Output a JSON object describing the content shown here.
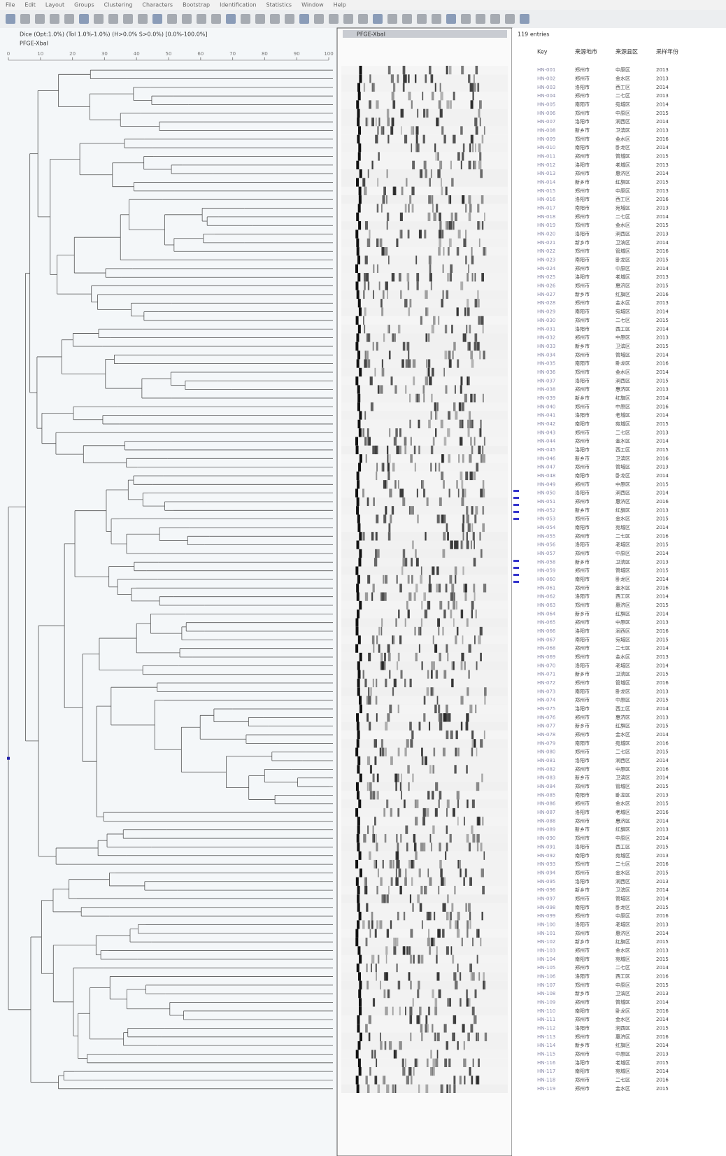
{
  "menu": [
    "File",
    "Edit",
    "Layout",
    "Groups",
    "Clustering",
    "Characters",
    "Bootstrap",
    "Identification",
    "Statistics",
    "Window",
    "Help"
  ],
  "dendrogram_header": [
    "Dice (Opt:1.0%) (Tol 1.0%-1.0%) (H>0.0% S>0.0%) [0.0%-100.0%]",
    "PFGE-XbaI"
  ],
  "gel_title": "PFGE-XbaI",
  "entries": "119 entries",
  "scale": {
    "lim": [
      0,
      100
    ],
    "ticks": [
      0,
      10,
      20,
      30,
      40,
      50,
      60,
      70,
      80,
      90,
      100
    ]
  },
  "table": {
    "header": [
      "Key",
      "来源地市",
      "来源县区",
      "采样年份"
    ],
    "rows": [
      [
        "HN-001",
        "郑州市",
        "中原区",
        "2013"
      ],
      [
        "HN-002",
        "郑州市",
        "金水区",
        "2013"
      ],
      [
        "HN-003",
        "洛阳市",
        "西工区",
        "2014"
      ],
      [
        "HN-004",
        "郑州市",
        "二七区",
        "2013"
      ],
      [
        "HN-005",
        "南阳市",
        "宛城区",
        "2014"
      ],
      [
        "HN-006",
        "郑州市",
        "中原区",
        "2015"
      ],
      [
        "HN-007",
        "洛阳市",
        "涧西区",
        "2014"
      ],
      [
        "HN-008",
        "新乡市",
        "卫滨区",
        "2013"
      ],
      [
        "HN-009",
        "郑州市",
        "金水区",
        "2016"
      ],
      [
        "HN-010",
        "南阳市",
        "卧龙区",
        "2014"
      ],
      [
        "HN-011",
        "郑州市",
        "管城区",
        "2015"
      ],
      [
        "HN-012",
        "洛阳市",
        "老城区",
        "2013"
      ],
      [
        "HN-013",
        "郑州市",
        "惠济区",
        "2014"
      ],
      [
        "HN-014",
        "新乡市",
        "红旗区",
        "2015"
      ],
      [
        "HN-015",
        "郑州市",
        "中原区",
        "2013"
      ],
      [
        "HN-016",
        "洛阳市",
        "西工区",
        "2016"
      ],
      [
        "HN-017",
        "南阳市",
        "宛城区",
        "2013"
      ],
      [
        "HN-018",
        "郑州市",
        "二七区",
        "2014"
      ],
      [
        "HN-019",
        "郑州市",
        "金水区",
        "2015"
      ],
      [
        "HN-020",
        "洛阳市",
        "涧西区",
        "2013"
      ],
      [
        "HN-021",
        "新乡市",
        "卫滨区",
        "2014"
      ],
      [
        "HN-022",
        "郑州市",
        "管城区",
        "2016"
      ],
      [
        "HN-023",
        "南阳市",
        "卧龙区",
        "2015"
      ],
      [
        "HN-024",
        "郑州市",
        "中原区",
        "2014"
      ],
      [
        "HN-025",
        "洛阳市",
        "老城区",
        "2013"
      ],
      [
        "HN-026",
        "郑州市",
        "惠济区",
        "2015"
      ],
      [
        "HN-027",
        "新乡市",
        "红旗区",
        "2016"
      ],
      [
        "HN-028",
        "郑州市",
        "金水区",
        "2013"
      ],
      [
        "HN-029",
        "南阳市",
        "宛城区",
        "2014"
      ],
      [
        "HN-030",
        "郑州市",
        "二七区",
        "2015"
      ],
      [
        "HN-031",
        "洛阳市",
        "西工区",
        "2014"
      ],
      [
        "HN-032",
        "郑州市",
        "中原区",
        "2013"
      ],
      [
        "HN-033",
        "新乡市",
        "卫滨区",
        "2015"
      ],
      [
        "HN-034",
        "郑州市",
        "管城区",
        "2014"
      ],
      [
        "HN-035",
        "南阳市",
        "卧龙区",
        "2016"
      ],
      [
        "HN-036",
        "郑州市",
        "金水区",
        "2014"
      ],
      [
        "HN-037",
        "洛阳市",
        "涧西区",
        "2015"
      ],
      [
        "HN-038",
        "郑州市",
        "惠济区",
        "2013"
      ],
      [
        "HN-039",
        "新乡市",
        "红旗区",
        "2014"
      ],
      [
        "HN-040",
        "郑州市",
        "中原区",
        "2016"
      ],
      [
        "HN-041",
        "洛阳市",
        "老城区",
        "2014"
      ],
      [
        "HN-042",
        "南阳市",
        "宛城区",
        "2015"
      ],
      [
        "HN-043",
        "郑州市",
        "二七区",
        "2013"
      ],
      [
        "HN-044",
        "郑州市",
        "金水区",
        "2014"
      ],
      [
        "HN-045",
        "洛阳市",
        "西工区",
        "2015"
      ],
      [
        "HN-046",
        "新乡市",
        "卫滨区",
        "2016"
      ],
      [
        "HN-047",
        "郑州市",
        "管城区",
        "2013"
      ],
      [
        "HN-048",
        "南阳市",
        "卧龙区",
        "2014"
      ],
      [
        "HN-049",
        "郑州市",
        "中原区",
        "2015"
      ],
      [
        "HN-050",
        "洛阳市",
        "涧西区",
        "2014"
      ],
      [
        "HN-051",
        "郑州市",
        "惠济区",
        "2016"
      ],
      [
        "HN-052",
        "新乡市",
        "红旗区",
        "2013"
      ],
      [
        "HN-053",
        "郑州市",
        "金水区",
        "2015"
      ],
      [
        "HN-054",
        "南阳市",
        "宛城区",
        "2014"
      ],
      [
        "HN-055",
        "郑州市",
        "二七区",
        "2016"
      ],
      [
        "HN-056",
        "洛阳市",
        "老城区",
        "2015"
      ],
      [
        "HN-057",
        "郑州市",
        "中原区",
        "2014"
      ],
      [
        "HN-058",
        "新乡市",
        "卫滨区",
        "2013"
      ],
      [
        "HN-059",
        "郑州市",
        "管城区",
        "2015"
      ],
      [
        "HN-060",
        "南阳市",
        "卧龙区",
        "2014"
      ],
      [
        "HN-061",
        "郑州市",
        "金水区",
        "2016"
      ],
      [
        "HN-062",
        "洛阳市",
        "西工区",
        "2014"
      ],
      [
        "HN-063",
        "郑州市",
        "惠济区",
        "2015"
      ],
      [
        "HN-064",
        "新乡市",
        "红旗区",
        "2014"
      ],
      [
        "HN-065",
        "郑州市",
        "中原区",
        "2013"
      ],
      [
        "HN-066",
        "洛阳市",
        "涧西区",
        "2016"
      ],
      [
        "HN-067",
        "南阳市",
        "宛城区",
        "2015"
      ],
      [
        "HN-068",
        "郑州市",
        "二七区",
        "2014"
      ],
      [
        "HN-069",
        "郑州市",
        "金水区",
        "2013"
      ],
      [
        "HN-070",
        "洛阳市",
        "老城区",
        "2014"
      ],
      [
        "HN-071",
        "新乡市",
        "卫滨区",
        "2015"
      ],
      [
        "HN-072",
        "郑州市",
        "管城区",
        "2016"
      ],
      [
        "HN-073",
        "南阳市",
        "卧龙区",
        "2013"
      ],
      [
        "HN-074",
        "郑州市",
        "中原区",
        "2015"
      ],
      [
        "HN-075",
        "洛阳市",
        "西工区",
        "2014"
      ],
      [
        "HN-076",
        "郑州市",
        "惠济区",
        "2013"
      ],
      [
        "HN-077",
        "新乡市",
        "红旗区",
        "2015"
      ],
      [
        "HN-078",
        "郑州市",
        "金水区",
        "2014"
      ],
      [
        "HN-079",
        "南阳市",
        "宛城区",
        "2016"
      ],
      [
        "HN-080",
        "郑州市",
        "二七区",
        "2015"
      ],
      [
        "HN-081",
        "洛阳市",
        "涧西区",
        "2014"
      ],
      [
        "HN-082",
        "郑州市",
        "中原区",
        "2016"
      ],
      [
        "HN-083",
        "新乡市",
        "卫滨区",
        "2014"
      ],
      [
        "HN-084",
        "郑州市",
        "管城区",
        "2015"
      ],
      [
        "HN-085",
        "南阳市",
        "卧龙区",
        "2013"
      ],
      [
        "HN-086",
        "郑州市",
        "金水区",
        "2015"
      ],
      [
        "HN-087",
        "洛阳市",
        "老城区",
        "2016"
      ],
      [
        "HN-088",
        "郑州市",
        "惠济区",
        "2014"
      ],
      [
        "HN-089",
        "新乡市",
        "红旗区",
        "2013"
      ],
      [
        "HN-090",
        "郑州市",
        "中原区",
        "2014"
      ],
      [
        "HN-091",
        "洛阳市",
        "西工区",
        "2015"
      ],
      [
        "HN-092",
        "南阳市",
        "宛城区",
        "2013"
      ],
      [
        "HN-093",
        "郑州市",
        "二七区",
        "2016"
      ],
      [
        "HN-094",
        "郑州市",
        "金水区",
        "2015"
      ],
      [
        "HN-095",
        "洛阳市",
        "涧西区",
        "2013"
      ],
      [
        "HN-096",
        "新乡市",
        "卫滨区",
        "2014"
      ],
      [
        "HN-097",
        "郑州市",
        "管城区",
        "2014"
      ],
      [
        "HN-098",
        "南阳市",
        "卧龙区",
        "2015"
      ],
      [
        "HN-099",
        "郑州市",
        "中原区",
        "2016"
      ],
      [
        "HN-100",
        "洛阳市",
        "老城区",
        "2013"
      ],
      [
        "HN-101",
        "郑州市",
        "惠济区",
        "2014"
      ],
      [
        "HN-102",
        "新乡市",
        "红旗区",
        "2015"
      ],
      [
        "HN-103",
        "郑州市",
        "金水区",
        "2013"
      ],
      [
        "HN-104",
        "南阳市",
        "宛城区",
        "2015"
      ],
      [
        "HN-105",
        "郑州市",
        "二七区",
        "2014"
      ],
      [
        "HN-106",
        "洛阳市",
        "西工区",
        "2016"
      ],
      [
        "HN-107",
        "郑州市",
        "中原区",
        "2015"
      ],
      [
        "HN-108",
        "新乡市",
        "卫滨区",
        "2013"
      ],
      [
        "HN-109",
        "郑州市",
        "管城区",
        "2014"
      ],
      [
        "HN-110",
        "南阳市",
        "卧龙区",
        "2016"
      ],
      [
        "HN-111",
        "郑州市",
        "金水区",
        "2014"
      ],
      [
        "HN-112",
        "洛阳市",
        "涧西区",
        "2015"
      ],
      [
        "HN-113",
        "郑州市",
        "惠济区",
        "2016"
      ],
      [
        "HN-114",
        "新乡市",
        "红旗区",
        "2014"
      ],
      [
        "HN-115",
        "郑州市",
        "中原区",
        "2013"
      ],
      [
        "HN-116",
        "洛阳市",
        "老城区",
        "2015"
      ],
      [
        "HN-117",
        "南阳市",
        "宛城区",
        "2014"
      ],
      [
        "HN-118",
        "郑州市",
        "二七区",
        "2016"
      ],
      [
        "HN-119",
        "郑州市",
        "金水区",
        "2015"
      ]
    ]
  }
}
